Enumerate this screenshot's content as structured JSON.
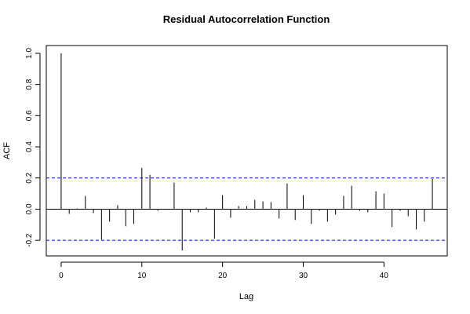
{
  "chart_data": {
    "type": "bar",
    "title": "Residual Autocorrelation Function",
    "xlabel": "Lag",
    "ylabel": "ACF",
    "xlim": [
      -1.84,
      47.84
    ],
    "ylim": [
      -0.3,
      1.05
    ],
    "x_ticks": [
      0,
      10,
      20,
      30,
      40
    ],
    "x_tick_labels": [
      "0",
      "10",
      "20",
      "30",
      "40"
    ],
    "y_ticks": [
      -0.2,
      0.0,
      0.2,
      0.4,
      0.6,
      0.8,
      1.0
    ],
    "y_tick_labels": [
      "-0.2",
      "0.0",
      "0.2",
      "0.4",
      "0.6",
      "0.8",
      "1.0"
    ],
    "lags": [
      0,
      1,
      2,
      3,
      4,
      5,
      6,
      7,
      8,
      9,
      10,
      11,
      12,
      13,
      14,
      15,
      16,
      17,
      18,
      19,
      20,
      21,
      22,
      23,
      24,
      25,
      26,
      27,
      28,
      29,
      30,
      31,
      32,
      33,
      34,
      35,
      36,
      37,
      38,
      39,
      40,
      41,
      42,
      43,
      44,
      45,
      46
    ],
    "values": [
      1.0,
      -0.03,
      0.005,
      0.085,
      -0.025,
      -0.195,
      -0.08,
      0.025,
      -0.11,
      -0.095,
      0.265,
      0.22,
      -0.01,
      0.0,
      0.17,
      -0.265,
      -0.02,
      -0.02,
      0.01,
      -0.19,
      0.09,
      -0.055,
      0.02,
      0.02,
      0.06,
      0.05,
      0.045,
      -0.06,
      0.165,
      -0.07,
      0.09,
      -0.095,
      -0.01,
      -0.08,
      -0.035,
      0.085,
      0.15,
      -0.01,
      -0.02,
      0.115,
      0.1,
      -0.115,
      -0.01,
      -0.045,
      -0.13,
      -0.08,
      0.195
    ],
    "confidence_bounds": [
      0.2,
      -0.2
    ],
    "colors": {
      "bars": "#000000",
      "bounds": "#0000ff",
      "frame": "#000000"
    },
    "grid": false
  }
}
